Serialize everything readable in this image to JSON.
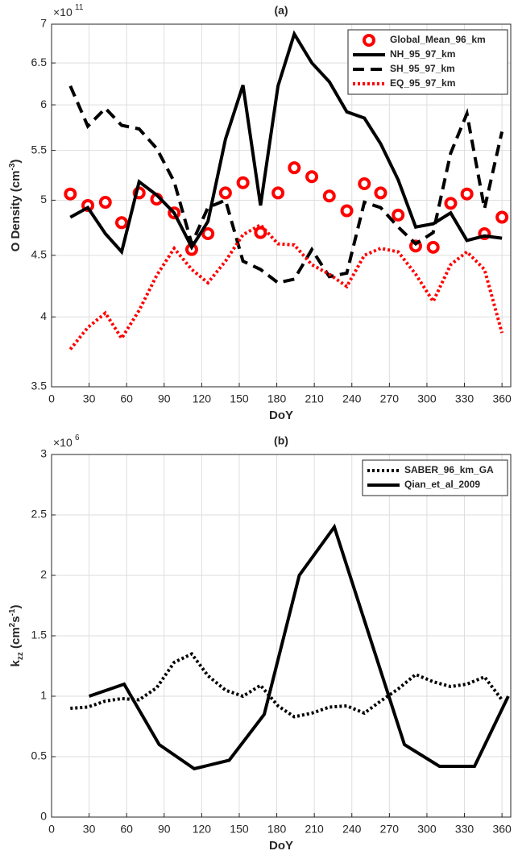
{
  "chart_data": [
    {
      "type": "line",
      "title": "(a)",
      "xlabel": "DoY",
      "ylabel_parts": [
        {
          "text": "O Density (cm"
        },
        {
          "text": "-3",
          "shift": "sup"
        },
        {
          "text": ")"
        }
      ],
      "exponent_base": "×10",
      "exponent": "11",
      "xlim": [
        0,
        367
      ],
      "xticks": [
        0,
        30,
        60,
        90,
        120,
        150,
        180,
        210,
        240,
        270,
        300,
        330,
        360
      ],
      "ylim": [
        3.5,
        7
      ],
      "yticks": [
        3.5,
        4,
        4.5,
        5,
        5.5,
        6,
        6.5,
        7
      ],
      "log_y": true,
      "grid": true,
      "legend": "upper right",
      "x": [
        15,
        29,
        43,
        56,
        70,
        84,
        98,
        112,
        125,
        139,
        153,
        167,
        181,
        194,
        208,
        222,
        236,
        250,
        263,
        277,
        291,
        305,
        319,
        332,
        346,
        360
      ],
      "series": [
        {
          "name": "Global_Mean_96_km",
          "color": "#ff0000",
          "linestyle": "none",
          "marker": "o",
          "values": [
            5.06,
            4.95,
            4.98,
            4.79,
            5.07,
            5.01,
            4.88,
            4.55,
            4.69,
            5.07,
            5.17,
            4.7,
            5.07,
            5.32,
            5.23,
            5.04,
            4.9,
            5.16,
            5.07,
            4.86,
            4.58,
            4.57,
            4.97,
            5.06,
            4.69,
            4.84
          ]
        },
        {
          "name": "NH_95_97_km",
          "color": "#000000",
          "linestyle": "solid",
          "values": [
            4.84,
            4.93,
            4.69,
            4.53,
            5.18,
            5.05,
            4.88,
            4.57,
            4.8,
            5.62,
            6.23,
            4.95,
            6.22,
            6.87,
            6.5,
            6.27,
            5.92,
            5.85,
            5.57,
            5.2,
            4.75,
            4.78,
            4.88,
            4.63,
            4.67,
            4.65
          ]
        },
        {
          "name": "SH_95_97_km",
          "color": "#000000",
          "linestyle": "dashed",
          "values": [
            6.22,
            5.76,
            5.96,
            5.77,
            5.73,
            5.52,
            5.18,
            4.6,
            4.93,
            5.0,
            4.45,
            4.38,
            4.27,
            4.3,
            4.55,
            4.32,
            4.35,
            4.98,
            4.93,
            4.75,
            4.6,
            4.7,
            5.47,
            5.9,
            4.92,
            5.7
          ]
        },
        {
          "name": "EQ_95_97_km",
          "color": "#ff0000",
          "linestyle": "dotted",
          "values": [
            3.76,
            3.92,
            4.03,
            3.84,
            4.05,
            4.33,
            4.56,
            4.38,
            4.27,
            4.45,
            4.68,
            4.77,
            4.6,
            4.59,
            4.42,
            4.34,
            4.24,
            4.5,
            4.56,
            4.53,
            4.34,
            4.12,
            4.42,
            4.53,
            4.38,
            3.88
          ]
        }
      ]
    },
    {
      "type": "line",
      "title": "(b)",
      "xlabel": "DoY",
      "ylabel_parts": [
        {
          "text": "k"
        },
        {
          "text": "zz",
          "shift": "sub"
        },
        {
          "text": " (cm"
        },
        {
          "text": "2",
          "shift": "sup"
        },
        {
          "text": "s"
        },
        {
          "text": "-1",
          "shift": "sup"
        },
        {
          "text": ")"
        }
      ],
      "exponent_base": "×10",
      "exponent": "6",
      "xlim": [
        0,
        367
      ],
      "xticks": [
        0,
        30,
        60,
        90,
        120,
        150,
        180,
        210,
        240,
        270,
        300,
        330,
        360
      ],
      "ylim": [
        0,
        3
      ],
      "yticks": [
        0,
        0.5,
        1,
        1.5,
        2,
        2.5,
        3
      ],
      "log_y": false,
      "grid": true,
      "legend": "upper right",
      "series": [
        {
          "name": "SABER_96_km_GA",
          "color": "#000000",
          "linestyle": "dotted",
          "x": [
            15,
            29,
            43,
            56,
            70,
            84,
            98,
            112,
            125,
            139,
            153,
            167,
            181,
            194,
            208,
            222,
            236,
            250,
            263,
            277,
            291,
            305,
            319,
            332,
            346,
            360
          ],
          "values": [
            0.9,
            0.91,
            0.96,
            0.98,
            0.97,
            1.07,
            1.28,
            1.35,
            1.17,
            1.05,
            1.0,
            1.09,
            0.92,
            0.83,
            0.86,
            0.91,
            0.92,
            0.86,
            0.96,
            1.06,
            1.18,
            1.12,
            1.08,
            1.1,
            1.16,
            0.97
          ]
        },
        {
          "name": "Qian_et_al_2009",
          "color": "#000000",
          "linestyle": "solid",
          "x": [
            30,
            58,
            86,
            114,
            142,
            170,
            198,
            226,
            254,
            282,
            310,
            338,
            365
          ],
          "values": [
            1.0,
            1.1,
            0.6,
            0.4,
            0.47,
            0.85,
            2.0,
            2.4,
            1.5,
            0.6,
            0.42,
            0.42,
            1.0
          ]
        }
      ]
    }
  ]
}
